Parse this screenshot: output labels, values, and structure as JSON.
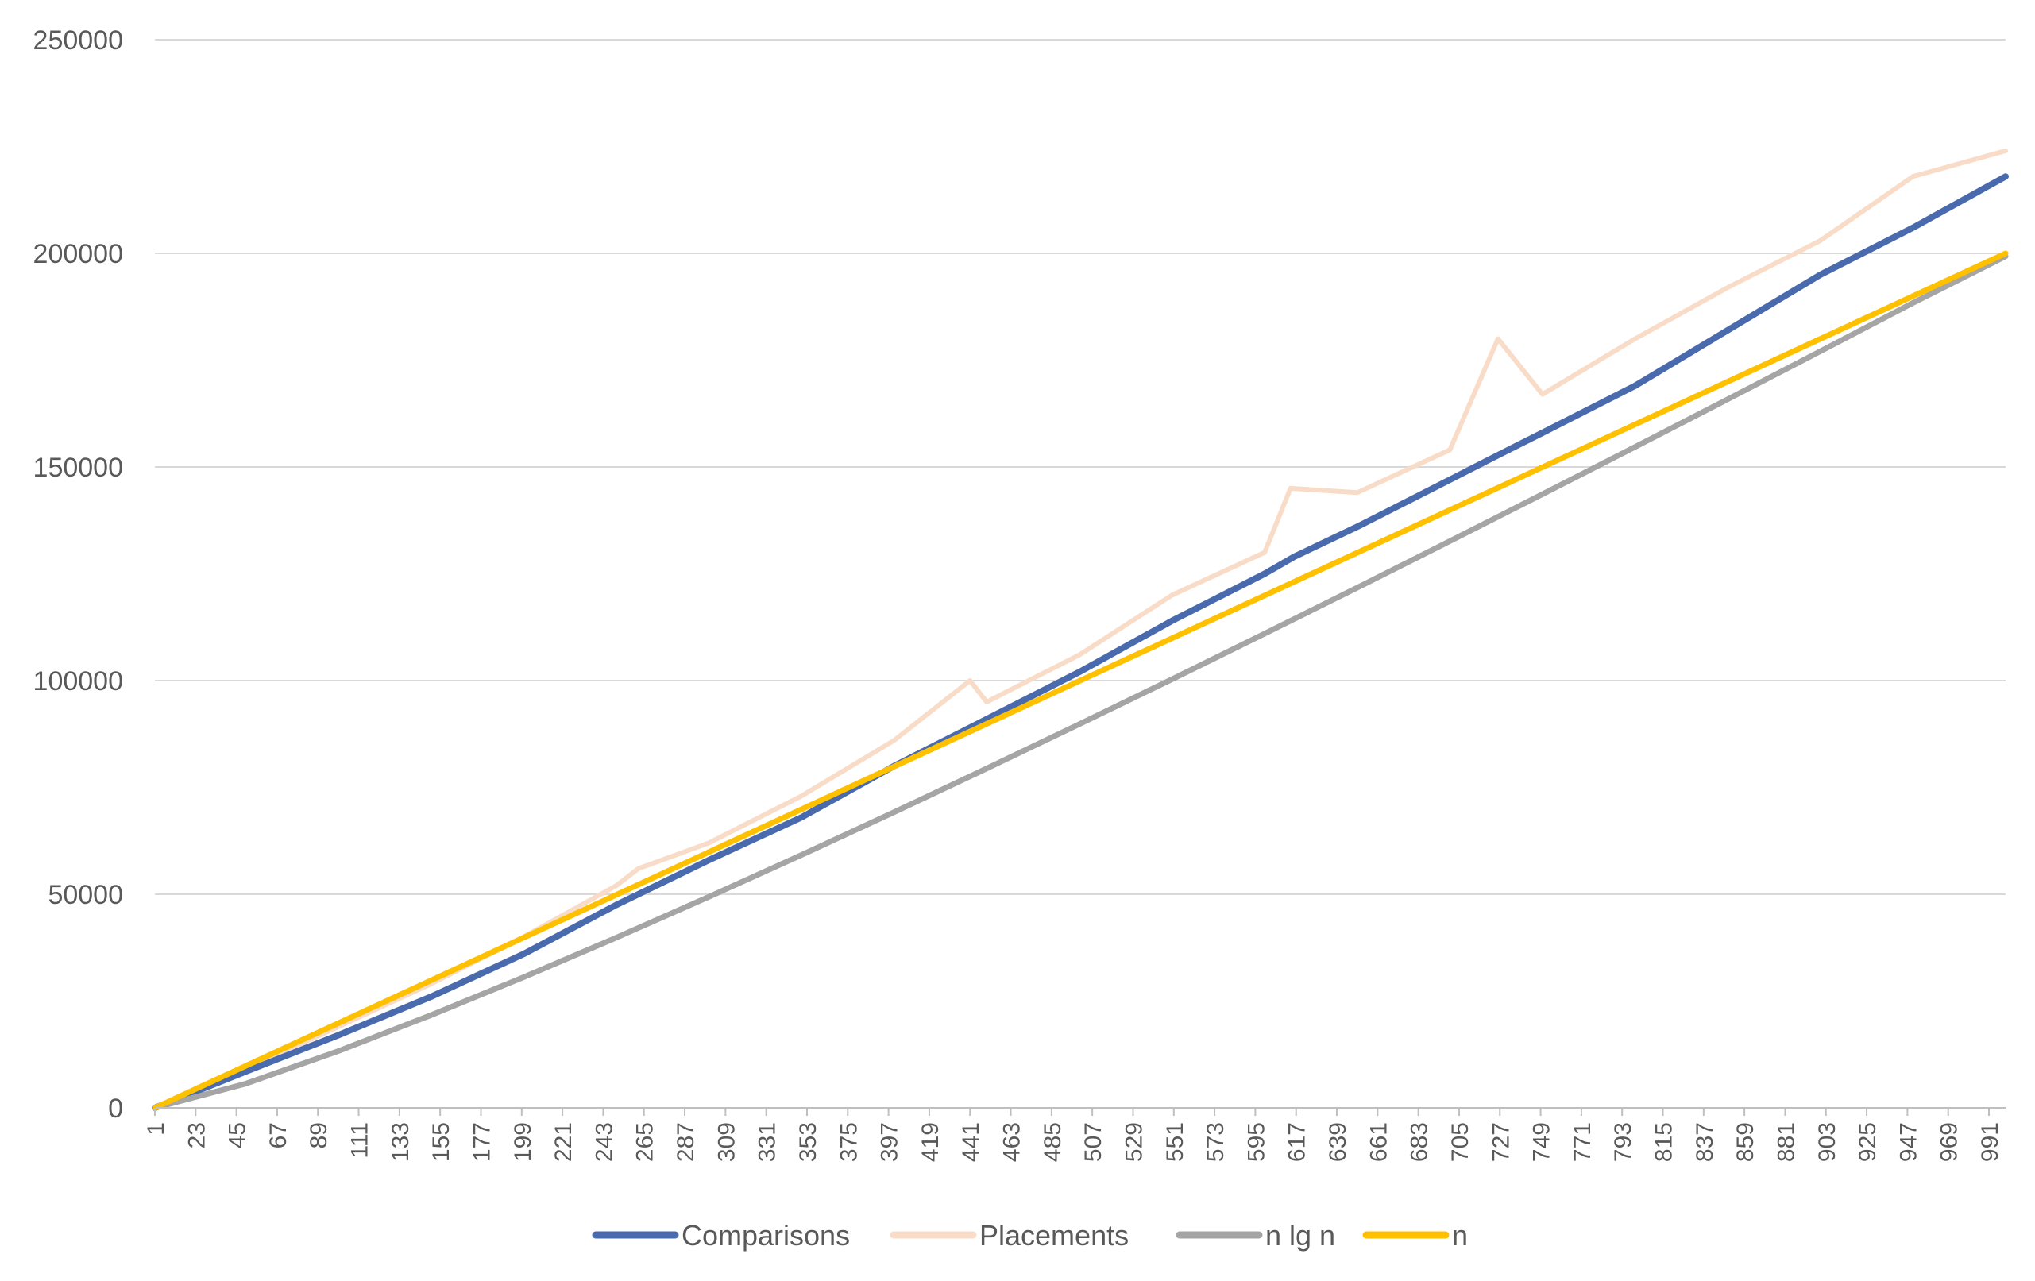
{
  "chart_data": {
    "type": "line",
    "title": "",
    "xlabel": "",
    "ylabel": "",
    "x_range": [
      1,
      1000
    ],
    "x_tick_labels": [
      "1",
      "23",
      "45",
      "67",
      "89",
      "111",
      "133",
      "155",
      "177",
      "199",
      "221",
      "243",
      "265",
      "287",
      "309",
      "331",
      "353",
      "375",
      "397",
      "419",
      "441",
      "463",
      "485",
      "507",
      "529",
      "551",
      "573",
      "595",
      "617",
      "639",
      "661",
      "683",
      "705",
      "727",
      "749",
      "771",
      "793",
      "815",
      "837",
      "859",
      "881",
      "903",
      "925",
      "947",
      "969",
      "991"
    ],
    "ylim": [
      0,
      250000
    ],
    "y_ticks": [
      0,
      50000,
      100000,
      150000,
      200000,
      250000
    ],
    "y_tick_labels": [
      "0",
      "50000",
      "100000",
      "150000",
      "200000",
      "250000"
    ],
    "grid": true,
    "legend_position": "bottom",
    "colors": {
      "comparisons": "#4a6aae",
      "placements": "#f8dcc8",
      "nlgn": "#a5a5a5",
      "n": "#ffc000",
      "axis": "#bfbfbf",
      "grid": "#d9d9d9",
      "text": "#595959"
    },
    "series": [
      {
        "name": "Comparisons",
        "key": "comparisons",
        "x": [
          1,
          50,
          100,
          150,
          200,
          250,
          300,
          350,
          400,
          441,
          500,
          550,
          600,
          616,
          650,
          700,
          727,
          750,
          800,
          850,
          900,
          950,
          1000
        ],
        "y": [
          0,
          8500,
          17000,
          26000,
          36000,
          47500,
          58000,
          68000,
          80000,
          89000,
          102000,
          114000,
          125000,
          129000,
          136000,
          147000,
          153000,
          158000,
          169000,
          182000,
          195000,
          206000,
          218000
        ]
      },
      {
        "name": "Placements",
        "key": "placements",
        "x": [
          1,
          50,
          100,
          150,
          200,
          250,
          262,
          300,
          350,
          400,
          441,
          450,
          500,
          550,
          600,
          614,
          650,
          700,
          726,
          750,
          800,
          850,
          900,
          950,
          1000
        ],
        "y": [
          0,
          9000,
          19000,
          29000,
          40000,
          52000,
          56000,
          62000,
          73000,
          86000,
          100000,
          95000,
          106000,
          120000,
          130000,
          145000,
          144000,
          154000,
          180000,
          167000,
          180000,
          192000,
          203000,
          218000,
          224000
        ]
      },
      {
        "name": "n lg n",
        "key": "nlgn",
        "x": [
          1,
          50,
          100,
          150,
          200,
          250,
          300,
          350,
          400,
          450,
          500,
          550,
          600,
          650,
          700,
          750,
          800,
          850,
          900,
          950,
          1000
        ],
        "y": [
          0,
          5644,
          13288,
          21688,
          30575,
          39829,
          49381,
          59184,
          69205,
          79417,
          89795,
          100321,
          110978,
          121752,
          132635,
          143616,
          154690,
          165848,
          177084,
          188394,
          199316
        ]
      },
      {
        "name": "n",
        "key": "n",
        "x": [
          1,
          1000
        ],
        "y": [
          0,
          200000
        ]
      }
    ]
  }
}
